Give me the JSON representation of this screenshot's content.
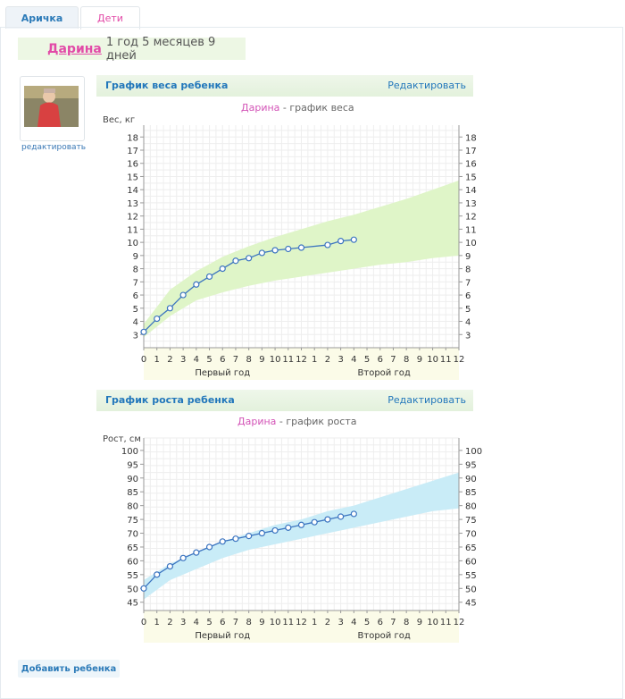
{
  "tabs": [
    {
      "label": "Аричка"
    },
    {
      "label": "Дети"
    }
  ],
  "child": {
    "name": "Дарина",
    "age": "1 год 5 месяцев 9 дней"
  },
  "photo": {
    "edit_label": "редактировать"
  },
  "weight_chart": {
    "title": "График веса ребенка",
    "edit_label": "Редактировать",
    "subtitle_name": "Дарина",
    "subtitle_text": " - график веса"
  },
  "height_chart": {
    "title": "График роста ребенка",
    "edit_label": "Редактировать",
    "subtitle_name": "Дарина",
    "subtitle_text": " - график роста"
  },
  "add_child_label": "Добавить ребенка",
  "chart_data": [
    {
      "type": "line",
      "title": "Дарина - график веса",
      "ylabel": "Вес, кг",
      "ylim": [
        2,
        18
      ],
      "yticks": [
        3,
        4,
        5,
        6,
        7,
        8,
        9,
        10,
        11,
        12,
        13,
        14,
        15,
        16,
        17,
        18
      ],
      "x_tick_labels": [
        "0",
        "1",
        "2",
        "3",
        "4",
        "5",
        "6",
        "7",
        "8",
        "9",
        "10",
        "11",
        "12",
        "1",
        "2",
        "3",
        "4",
        "5",
        "6",
        "7",
        "8",
        "9",
        "10",
        "11",
        "12"
      ],
      "x_group_labels": [
        "Первый год",
        "Второй год"
      ],
      "xlim": [
        0,
        24
      ],
      "series": [
        {
          "x": [
            0,
            1,
            2,
            3,
            4,
            5,
            6,
            7,
            8,
            9,
            10,
            11,
            12,
            14,
            15,
            16
          ],
          "values": [
            3.2,
            4.2,
            5.0,
            6.0,
            6.8,
            7.4,
            8.0,
            8.6,
            8.8,
            9.2,
            9.4,
            9.5,
            9.6,
            9.8,
            10.1,
            10.2
          ],
          "color": "#3b74c0"
        }
      ],
      "band": {
        "color": "#dff5c8",
        "x": [
          0,
          2,
          4,
          6,
          8,
          10,
          12,
          14,
          16,
          18,
          20,
          22,
          24
        ],
        "lower": [
          2.8,
          4.4,
          5.6,
          6.2,
          6.7,
          7.1,
          7.4,
          7.7,
          8.0,
          8.3,
          8.5,
          8.8,
          9.0
        ],
        "upper": [
          3.8,
          6.4,
          7.8,
          8.9,
          9.7,
          10.4,
          11.0,
          11.6,
          12.1,
          12.7,
          13.3,
          14.0,
          14.7
        ]
      },
      "grid": true
    },
    {
      "type": "line",
      "title": "Дарина - график роста",
      "ylabel": "Рост, см",
      "ylim": [
        42,
        103
      ],
      "yticks": [
        45,
        50,
        55,
        60,
        65,
        70,
        75,
        80,
        85,
        90,
        95,
        100
      ],
      "x_tick_labels": [
        "0",
        "1",
        "2",
        "3",
        "4",
        "5",
        "6",
        "7",
        "8",
        "9",
        "10",
        "11",
        "12",
        "1",
        "2",
        "3",
        "4",
        "5",
        "6",
        "7",
        "8",
        "9",
        "10",
        "11",
        "12"
      ],
      "x_group_labels": [
        "Первый год",
        "Второй год"
      ],
      "xlim": [
        0,
        24
      ],
      "series": [
        {
          "x": [
            0,
            1,
            2,
            3,
            4,
            5,
            6,
            7,
            8,
            9,
            10,
            11,
            12,
            13,
            14,
            15,
            16
          ],
          "values": [
            50,
            55,
            58,
            61,
            63,
            65,
            67,
            68,
            69,
            70,
            71,
            72,
            73,
            74,
            75,
            76,
            77
          ],
          "color": "#3b74c0"
        }
      ],
      "band": {
        "color": "#c9ecf7",
        "x": [
          0,
          2,
          4,
          6,
          8,
          10,
          12,
          14,
          16,
          18,
          20,
          22,
          24
        ],
        "lower": [
          46,
          53,
          57,
          61,
          64,
          66,
          68,
          70,
          72,
          74,
          76,
          78,
          79
        ],
        "upper": [
          53,
          59,
          63,
          67,
          70,
          73,
          75,
          78,
          80,
          83,
          86,
          89,
          92
        ]
      },
      "grid": true
    }
  ]
}
